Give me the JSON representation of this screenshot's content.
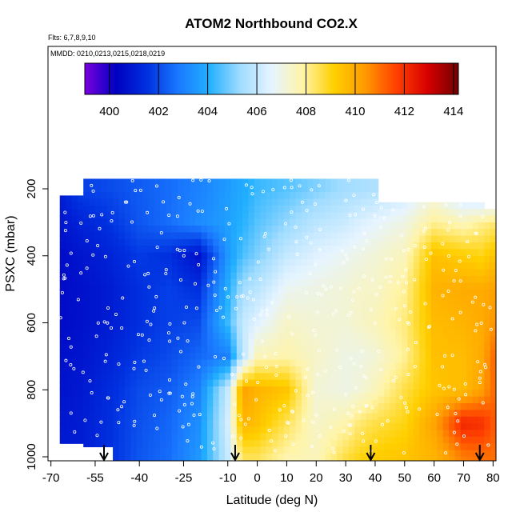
{
  "chart_data": {
    "type": "heatmap",
    "title": "ATOM2 Northbound CO2.X",
    "flights_label": "Flts: 6,7,8,9,10",
    "dates_label": "MMDD: 0210,0213,0215,0218,0219",
    "xlabel": "Latitude (deg N)",
    "ylabel": "PSXC (mbar)",
    "x_ticks": [
      -70,
      -55,
      -40,
      -25,
      -10,
      0,
      10,
      20,
      30,
      40,
      50,
      60,
      70,
      80
    ],
    "y_ticks": [
      200,
      400,
      600,
      800,
      1000
    ],
    "xlim": [
      -71,
      81
    ],
    "ylim": [
      1020,
      -230
    ],
    "colorbar": {
      "ticks": [
        400,
        402,
        404,
        406,
        408,
        410,
        412,
        414
      ],
      "range": [
        399,
        414.2
      ],
      "colors": [
        "#7a00e0",
        "#0000c0",
        "#0030e0",
        "#1a78ff",
        "#22b0ff",
        "#a0dcff",
        "#e6f4ff",
        "#fff4a8",
        "#ffd000",
        "#ff9a00",
        "#ff4000",
        "#d80000",
        "#700000"
      ]
    },
    "profile_arrows_lat": [
      -52,
      -7.5,
      38.5,
      75.5
    ],
    "columns": [
      {
        "lat": -70,
        "top": 220,
        "values": [
          400.8,
          400.6,
          400.5,
          400.5,
          400.5,
          400.6,
          400.7,
          400.8,
          400.9
        ]
      },
      {
        "lat": -60,
        "top": 170,
        "values": [
          401.8,
          401.2,
          400.8,
          400.7,
          400.7,
          400.8,
          400.9,
          401.0,
          401.0
        ]
      },
      {
        "lat": -50,
        "top": 170,
        "values": [
          402.0,
          401.6,
          401.2,
          401.0,
          401.0,
          401.2,
          401.4,
          401.5,
          401.5
        ]
      },
      {
        "lat": -40,
        "top": 170,
        "values": [
          402.3,
          402.2,
          401.7,
          401.5,
          401.5,
          401.7,
          402.0,
          402.1,
          402.2
        ]
      },
      {
        "lat": -30,
        "top": 170,
        "values": [
          402.6,
          402.6,
          401.5,
          401.8,
          401.8,
          402.0,
          402.3,
          402.5,
          402.6
        ]
      },
      {
        "lat": -20,
        "top": 170,
        "values": [
          403.0,
          403.2,
          400.7,
          401.5,
          402.0,
          402.5,
          403.0,
          403.3,
          403.5
        ]
      },
      {
        "lat": -10,
        "top": 170,
        "values": [
          403.6,
          403.7,
          403.5,
          404.0,
          404.3,
          403.0,
          406.0,
          406.3,
          406.0
        ]
      },
      {
        "lat": -5,
        "top": 170,
        "values": [
          403.9,
          404.1,
          404.5,
          405.4,
          406.0,
          405.8,
          410.2,
          409.8,
          408.5
        ]
      },
      {
        "lat": 0,
        "top": 170,
        "values": [
          404.3,
          404.6,
          405.0,
          405.8,
          406.5,
          407.6,
          409.8,
          409.5,
          408.5
        ]
      },
      {
        "lat": 10,
        "top": 170,
        "values": [
          404.6,
          405.2,
          406.0,
          406.8,
          407.4,
          407.8,
          409.4,
          408.5,
          407.8
        ]
      },
      {
        "lat": 20,
        "top": 170,
        "values": [
          405.0,
          405.8,
          406.5,
          407.0,
          407.2,
          407.4,
          407.2,
          407.4,
          407.6
        ]
      },
      {
        "lat": 30,
        "top": 170,
        "values": [
          405.4,
          406.1,
          406.8,
          407.2,
          407.2,
          407.0,
          407.0,
          407.8,
          408.6
        ]
      },
      {
        "lat": 35,
        "top": 170,
        "values": [
          405.5,
          406.4,
          407.0,
          407.4,
          407.4,
          407.0,
          407.2,
          408.3,
          409.0
        ]
      },
      {
        "lat": 40,
        "top": 240,
        "values": [
          405.6,
          406.6,
          407.2,
          407.4,
          407.6,
          407.2,
          407.6,
          408.6,
          409.2
        ]
      },
      {
        "lat": 50,
        "top": 240,
        "values": [
          406.0,
          407.0,
          407.6,
          408.0,
          408.2,
          408.0,
          408.6,
          409.0,
          409.4
        ]
      },
      {
        "lat": 60,
        "top": 240,
        "values": [
          406.8,
          408.0,
          409.5,
          409.8,
          409.6,
          409.5,
          409.4,
          410.2,
          409.8
        ]
      },
      {
        "lat": 70,
        "top": 240,
        "values": [
          405.6,
          407.6,
          409.2,
          410.0,
          409.8,
          409.6,
          409.6,
          412.2,
          410.8
        ]
      },
      {
        "lat": 76,
        "top": 260,
        "values": [
          405.2,
          408.0,
          409.0,
          410.0,
          410.0,
          410.0,
          410.2,
          412.0,
          411.0
        ]
      },
      {
        "lat": 80,
        "top": 260,
        "values": [
          405.2,
          408.2,
          409.4,
          410.2,
          410.4,
          411.0,
          411.0,
          411.4,
          411.0
        ]
      }
    ],
    "pressure_levels": [
      200,
      300,
      400,
      500,
      600,
      700,
      800,
      900,
      1000
    ]
  }
}
